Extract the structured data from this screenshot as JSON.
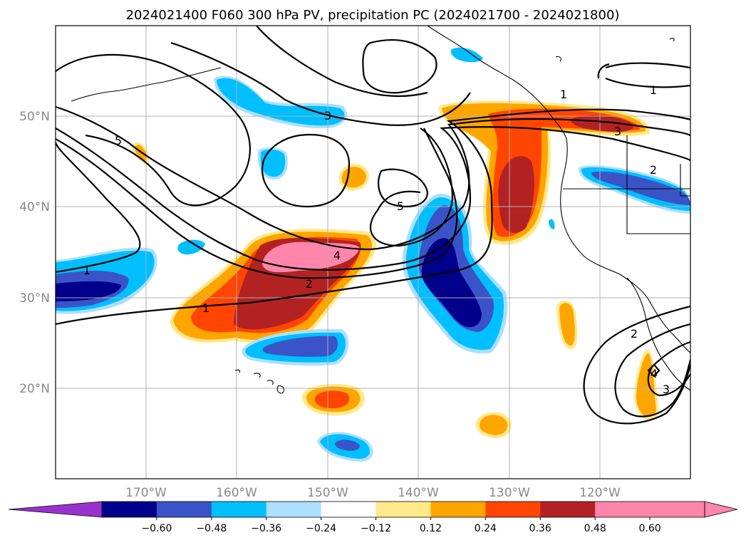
{
  "title": "2024021400 F060 300 hPa PV, precipitation PC (2024021700 - 2024021800)",
  "latitude_labels": [
    "50°N",
    "40°N",
    "30°N",
    "20°N"
  ],
  "longitude_labels": [
    "170°W",
    "160°W",
    "150°W",
    "140°W",
    "130°W",
    "120°W"
  ],
  "contour_labels": [
    "1",
    "2",
    "3",
    "4",
    "5"
  ],
  "colorbar": {
    "colors": [
      "#9932cc",
      "#00008b",
      "#3a54c8",
      "#00bfff",
      "#addfff",
      "#ffffff",
      "#ffe98a",
      "#ffa500",
      "#ff4500",
      "#b22222",
      "#ff85ab",
      "#ff85ab"
    ],
    "tick_labels": [
      "−0.60",
      "−0.48",
      "−0.36",
      "−0.24",
      "−0.12",
      "0.12",
      "0.24",
      "0.36",
      "0.48",
      "0.60"
    ]
  },
  "chart_data": {
    "type": "heatmap",
    "variable_fill": "precipitation PC",
    "variable_contours": "300 hPa PV",
    "xlim": [
      "180°W",
      "110°W"
    ],
    "ylim": [
      "10°N",
      "60°N"
    ],
    "grid": true,
    "colorbar_levels": [
      -0.6,
      -0.48,
      -0.36,
      -0.24,
      -0.12,
      0.12,
      0.24,
      0.36,
      0.48,
      0.6
    ],
    "colorbar_extend": "both",
    "contour_levels": [
      1,
      2,
      3,
      4,
      5
    ]
  }
}
